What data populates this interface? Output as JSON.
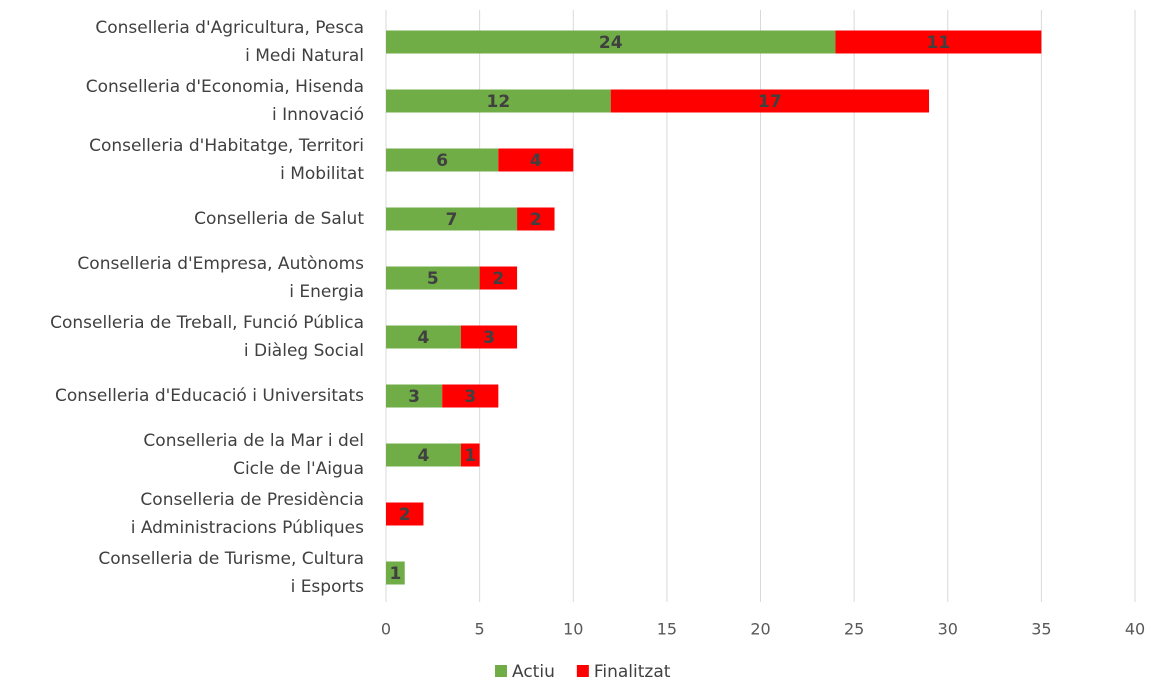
{
  "chart_data": {
    "type": "stacked-bar-horizontal",
    "categories": [
      "Conselleria d'Agricultura, Pesca\ni Medi Natural",
      "Conselleria d'Economia, Hisenda\ni Innovació",
      "Conselleria d'Habitatge, Territori\ni Mobilitat",
      "Conselleria de Salut",
      "Conselleria d'Empresa, Autònoms\ni Energia",
      "Conselleria de Treball, Funció Pública\ni Diàleg Social",
      "Conselleria d'Educació i Universitats",
      "Conselleria de la Mar i del\nCicle de l'Aigua",
      "Conselleria de Presidència\ni Administracions Públiques",
      "Conselleria de Turisme, Cultura\ni Esports"
    ],
    "series": [
      {
        "name": "Actiu",
        "color": "#70ad47",
        "values": [
          24,
          12,
          6,
          7,
          5,
          4,
          3,
          4,
          null,
          1
        ]
      },
      {
        "name": "Finalitzat",
        "color": "#ff0000",
        "values": [
          11,
          17,
          4,
          2,
          2,
          3,
          3,
          1,
          2,
          null
        ]
      }
    ],
    "xlim": [
      0,
      40
    ],
    "xticks": [
      0,
      5,
      10,
      15,
      20,
      25,
      30,
      35,
      40
    ],
    "grid": true,
    "legend": "bottom"
  }
}
